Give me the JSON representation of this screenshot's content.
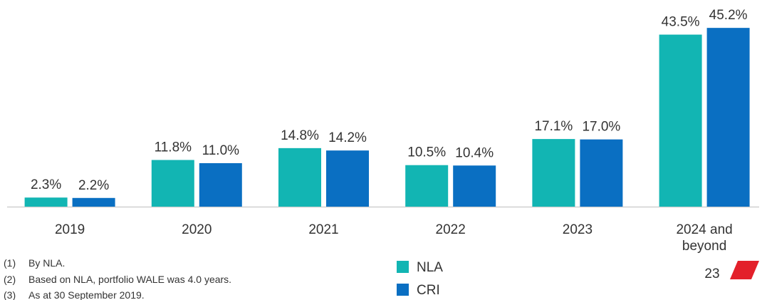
{
  "chart_data": {
    "type": "bar",
    "categories": [
      "2019",
      "2020",
      "2021",
      "2022",
      "2023",
      "2024 and beyond"
    ],
    "series": [
      {
        "name": "NLA",
        "color": "#12b5b3",
        "values": [
          2.3,
          11.8,
          14.8,
          10.5,
          17.1,
          43.5
        ],
        "value_labels": [
          "2.3%",
          "11.8%",
          "14.8%",
          "10.5%",
          "17.1%",
          "43.5%"
        ]
      },
      {
        "name": "CRI",
        "color": "#0a6fc2",
        "values": [
          2.2,
          11.0,
          14.2,
          10.4,
          17.0,
          45.2
        ],
        "value_labels": [
          "2.2%",
          "11.0%",
          "14.2%",
          "10.4%",
          "17.0%",
          "45.2%"
        ]
      }
    ],
    "ylim": [
      0,
      50
    ]
  },
  "footnotes": [
    {
      "marker": "(1)",
      "text": "By NLA."
    },
    {
      "marker": "(2)",
      "text": "Based on NLA, portfolio WALE was 4.0 years."
    },
    {
      "marker": "(3)",
      "text": "As at 30 September 2019."
    }
  ],
  "page_number": "23"
}
